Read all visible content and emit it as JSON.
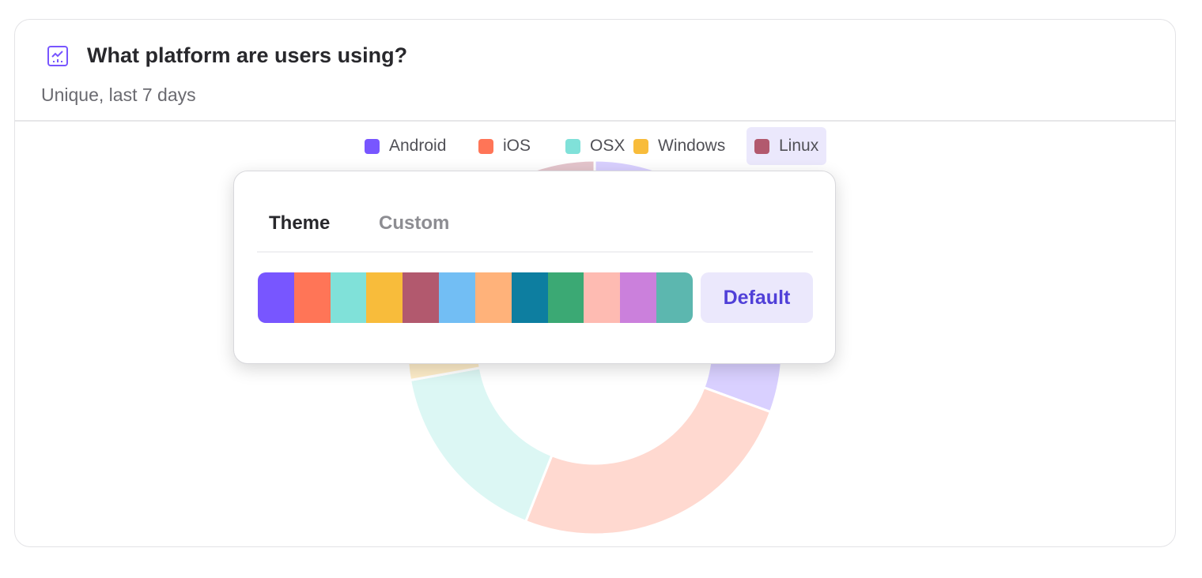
{
  "header": {
    "icon": "line-chart-icon",
    "title": "What platform are users using?",
    "subtitle": "Unique, last 7 days"
  },
  "accent_color": "#7856ff",
  "chart_data": {
    "type": "pie",
    "donut": true,
    "categories": [
      "Android",
      "iOS",
      "OSX",
      "Windows",
      "Linux"
    ],
    "values": [
      30.6,
      25.4,
      16.2,
      21.7,
      6.1
    ],
    "colors": [
      "#7856ff",
      "#ff7557",
      "#80e1d9",
      "#f8bc3b",
      "#b2596e"
    ],
    "legend": "top",
    "highlighted_legend": "Linux"
  },
  "popover": {
    "tabs": [
      {
        "label": "Theme",
        "active": true
      },
      {
        "label": "Custom",
        "active": false
      }
    ],
    "palette": [
      "#7856ff",
      "#ff7557",
      "#80e1d9",
      "#f8bc3b",
      "#b2596e",
      "#72bef4",
      "#ffb27a",
      "#0d7ea0",
      "#3ba974",
      "#febbb2",
      "#cb80dc",
      "#5cb7af"
    ],
    "default_label": "Default"
  }
}
